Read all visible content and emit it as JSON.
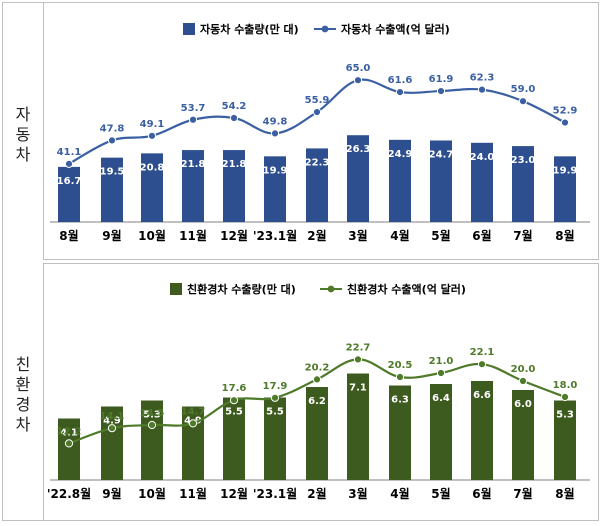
{
  "chart_data": [
    {
      "type": "bar+line",
      "panel_label_lines": [
        "자",
        "동",
        "차"
      ],
      "categories": [
        "8월",
        "9월",
        "10월",
        "11월",
        "12월",
        "'23.1월",
        "2월",
        "3월",
        "4월",
        "5월",
        "6월",
        "7월",
        "8월"
      ],
      "series": [
        {
          "name": "자동차 수출량(만 대)",
          "kind": "bar",
          "color": "#2e4f8f",
          "values": [
            16.7,
            19.5,
            20.8,
            21.8,
            21.8,
            19.9,
            22.3,
            26.3,
            24.9,
            24.7,
            24.0,
            23.0,
            19.9
          ]
        },
        {
          "name": "자동차 수출액(억 달러)",
          "kind": "line",
          "color": "#3a5fa3",
          "values": [
            41.1,
            47.8,
            49.1,
            53.7,
            54.2,
            49.8,
            55.9,
            65.0,
            61.6,
            61.9,
            62.3,
            59.0,
            52.9
          ]
        }
      ],
      "legend_position": "top",
      "grid": false
    },
    {
      "type": "bar+line",
      "panel_label_lines": [
        "친",
        "환",
        "경",
        "차"
      ],
      "categories": [
        "'22.8월",
        "9월",
        "10월",
        "11월",
        "12월",
        "'23.1월",
        "2월",
        "3월",
        "4월",
        "5월",
        "6월",
        "7월",
        "8월"
      ],
      "series": [
        {
          "name": "친환경차 수출량(만 대)",
          "kind": "bar",
          "color": "#3d5a1f",
          "values": [
            4.1,
            4.9,
            5.3,
            4.9,
            5.5,
            5.5,
            6.2,
            7.1,
            6.3,
            6.4,
            6.6,
            6.0,
            5.3
          ]
        },
        {
          "name": "친환경차 수출액(억 달러)",
          "kind": "line",
          "color": "#4e7a2a",
          "values": [
            12.2,
            14.1,
            14.5,
            14.7,
            17.6,
            17.9,
            20.2,
            22.7,
            20.5,
            21.0,
            22.1,
            20.0,
            18.0
          ]
        }
      ],
      "legend_position": "top",
      "grid": false
    }
  ]
}
